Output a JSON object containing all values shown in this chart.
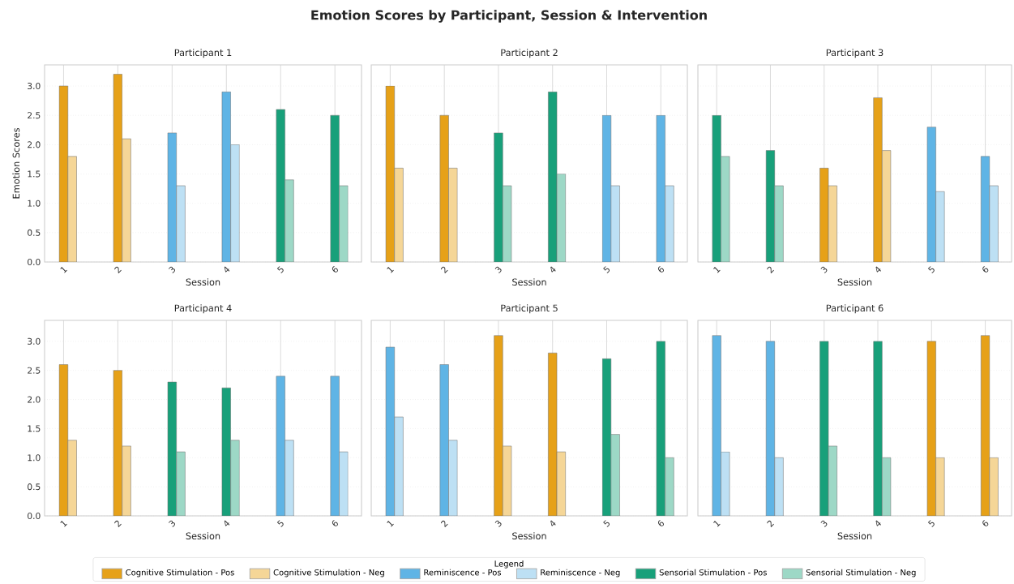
{
  "chart_data": [
    {
      "type": "bar",
      "title": "Participant 1",
      "annotations": [
        "Emotion Scores by Participant, Session & Intervention"
      ],
      "xlabel": "Session",
      "ylabel": "Emotion Scores",
      "legend_title": "Legend",
      "legend": "bottom",
      "grid": true,
      "categories": [
        "1",
        "2",
        "3",
        "4",
        "5",
        "6"
      ],
      "ylim": [
        0,
        3.36
      ],
      "yticks": [
        {
          "value": 0,
          "label": "0.0"
        },
        {
          "value": 0.5,
          "label": "0.5"
        },
        {
          "value": 1,
          "label": "1.0"
        },
        {
          "value": 1.5,
          "label": "1.5"
        },
        {
          "value": 2,
          "label": "2.0"
        },
        {
          "value": 2.5,
          "label": "2.5"
        },
        {
          "value": 3,
          "label": "3.0"
        }
      ],
      "series": [
        {
          "name": "Cognitive Stimulation - Pos",
          "color": "#e6a118",
          "values": [
            3.0,
            3.2,
            null,
            null,
            null,
            null
          ]
        },
        {
          "name": "Cognitive Stimulation - Neg",
          "color": "#f5d697",
          "values": [
            1.8,
            2.1,
            null,
            null,
            null,
            null
          ]
        },
        {
          "name": "Reminiscence - Pos",
          "color": "#5fb4e5",
          "values": [
            null,
            null,
            2.2,
            2.9,
            null,
            null
          ]
        },
        {
          "name": "Reminiscence - Neg",
          "color": "#bde0f4",
          "values": [
            null,
            null,
            1.3,
            2.0,
            null,
            null
          ]
        },
        {
          "name": "Sensorial Stimulation - Pos",
          "color": "#18a07a",
          "values": [
            null,
            null,
            null,
            null,
            2.6,
            2.5
          ]
        },
        {
          "name": "Sensorial Stimulation - Neg",
          "color": "#9dd8c6",
          "values": [
            null,
            null,
            null,
            null,
            1.4,
            1.3
          ]
        }
      ]
    },
    {
      "type": "bar",
      "title": "Participant 2",
      "xlabel": "Session",
      "grid": true,
      "tick_labels": "x",
      "categories": [
        "1",
        "2",
        "3",
        "4",
        "5",
        "6"
      ],
      "ylim": [
        0,
        3.36
      ],
      "yticks": [
        {
          "value": 0,
          "label": null
        },
        {
          "value": 0.5,
          "label": null
        },
        {
          "value": 1,
          "label": null
        },
        {
          "value": 1.5,
          "label": null
        },
        {
          "value": 2,
          "label": null
        },
        {
          "value": 2.5,
          "label": null
        },
        {
          "value": 3,
          "label": null
        }
      ],
      "series": [
        {
          "color": "#e6a118",
          "values": [
            3.0,
            2.5,
            null,
            null,
            null,
            null
          ]
        },
        {
          "color": "#f5d697",
          "values": [
            1.6,
            1.6,
            null,
            null,
            null,
            null
          ]
        },
        {
          "color": "#5fb4e5",
          "values": [
            null,
            null,
            null,
            null,
            2.5,
            2.5
          ]
        },
        {
          "color": "#bde0f4",
          "values": [
            null,
            null,
            null,
            null,
            1.3,
            1.3
          ]
        },
        {
          "color": "#18a07a",
          "values": [
            null,
            null,
            2.2,
            2.9,
            null,
            null
          ]
        },
        {
          "color": "#9dd8c6",
          "values": [
            null,
            null,
            1.3,
            1.5,
            null,
            null
          ]
        }
      ]
    },
    {
      "type": "bar",
      "title": "Participant 3",
      "xlabel": "Session",
      "grid": true,
      "tick_labels": "x",
      "categories": [
        "1",
        "2",
        "3",
        "4",
        "5",
        "6"
      ],
      "ylim": [
        0,
        3.36
      ],
      "yticks": [
        {
          "value": 0,
          "label": null
        },
        {
          "value": 0.5,
          "label": null
        },
        {
          "value": 1,
          "label": null
        },
        {
          "value": 1.5,
          "label": null
        },
        {
          "value": 2,
          "label": null
        },
        {
          "value": 2.5,
          "label": null
        },
        {
          "value": 3,
          "label": null
        }
      ],
      "series": [
        {
          "color": "#e6a118",
          "values": [
            null,
            null,
            1.6,
            2.8,
            null,
            null
          ]
        },
        {
          "color": "#f5d697",
          "values": [
            null,
            null,
            1.3,
            1.9,
            null,
            null
          ]
        },
        {
          "color": "#5fb4e5",
          "values": [
            null,
            null,
            null,
            null,
            2.3,
            1.8
          ]
        },
        {
          "color": "#bde0f4",
          "values": [
            null,
            null,
            null,
            null,
            1.2,
            1.3
          ]
        },
        {
          "color": "#18a07a",
          "values": [
            2.5,
            1.9,
            null,
            null,
            null,
            null
          ]
        },
        {
          "color": "#9dd8c6",
          "values": [
            1.8,
            1.3,
            null,
            null,
            null,
            null
          ]
        }
      ]
    },
    {
      "type": "bar",
      "title": "Participant 4",
      "xlabel": "Session",
      "grid": true,
      "categories": [
        "1",
        "2",
        "3",
        "4",
        "5",
        "6"
      ],
      "ylim": [
        0,
        3.36
      ],
      "yticks": [
        {
          "value": 0,
          "label": "0.0"
        },
        {
          "value": 0.5,
          "label": "0.5"
        },
        {
          "value": 1,
          "label": "1.0"
        },
        {
          "value": 1.5,
          "label": "1.5"
        },
        {
          "value": 2,
          "label": "2.0"
        },
        {
          "value": 2.5,
          "label": "2.5"
        },
        {
          "value": 3,
          "label": "3.0"
        }
      ],
      "series": [
        {
          "color": "#e6a118",
          "values": [
            2.6,
            2.5,
            null,
            null,
            null,
            null
          ]
        },
        {
          "color": "#f5d697",
          "values": [
            1.3,
            1.2,
            null,
            null,
            null,
            null
          ]
        },
        {
          "color": "#5fb4e5",
          "values": [
            null,
            null,
            null,
            null,
            2.4,
            2.4
          ]
        },
        {
          "color": "#bde0f4",
          "values": [
            null,
            null,
            null,
            null,
            1.3,
            1.1
          ]
        },
        {
          "color": "#18a07a",
          "values": [
            null,
            null,
            2.3,
            2.2,
            null,
            null
          ]
        },
        {
          "color": "#9dd8c6",
          "values": [
            null,
            null,
            1.1,
            1.3,
            null,
            null
          ]
        }
      ]
    },
    {
      "type": "bar",
      "title": "Participant 5",
      "xlabel": "Session",
      "grid": true,
      "tick_labels": "x",
      "categories": [
        "1",
        "2",
        "3",
        "4",
        "5",
        "6"
      ],
      "ylim": [
        0,
        3.36
      ],
      "yticks": [
        {
          "value": 0,
          "label": null
        },
        {
          "value": 0.5,
          "label": null
        },
        {
          "value": 1,
          "label": null
        },
        {
          "value": 1.5,
          "label": null
        },
        {
          "value": 2,
          "label": null
        },
        {
          "value": 2.5,
          "label": null
        },
        {
          "value": 3,
          "label": null
        }
      ],
      "series": [
        {
          "color": "#e6a118",
          "values": [
            null,
            null,
            3.1,
            2.8,
            null,
            null
          ]
        },
        {
          "color": "#f5d697",
          "values": [
            null,
            null,
            1.2,
            1.1,
            null,
            null
          ]
        },
        {
          "color": "#5fb4e5",
          "values": [
            2.9,
            2.6,
            null,
            null,
            null,
            null
          ]
        },
        {
          "color": "#bde0f4",
          "values": [
            1.7,
            1.3,
            null,
            null,
            null,
            null
          ]
        },
        {
          "color": "#18a07a",
          "values": [
            null,
            null,
            null,
            null,
            2.7,
            3.0
          ]
        },
        {
          "color": "#9dd8c6",
          "values": [
            null,
            null,
            null,
            null,
            1.4,
            1.0
          ]
        }
      ]
    },
    {
      "type": "bar",
      "title": "Participant 6",
      "xlabel": "Session",
      "grid": true,
      "tick_labels": "x",
      "categories": [
        "1",
        "2",
        "3",
        "4",
        "5",
        "6"
      ],
      "ylim": [
        0,
        3.36
      ],
      "yticks": [
        {
          "value": 0,
          "label": null
        },
        {
          "value": 0.5,
          "label": null
        },
        {
          "value": 1,
          "label": null
        },
        {
          "value": 1.5,
          "label": null
        },
        {
          "value": 2,
          "label": null
        },
        {
          "value": 2.5,
          "label": null
        },
        {
          "value": 3,
          "label": null
        }
      ],
      "series": [
        {
          "color": "#e6a118",
          "values": [
            null,
            null,
            null,
            null,
            3.0,
            3.1
          ]
        },
        {
          "color": "#f5d697",
          "values": [
            null,
            null,
            null,
            null,
            1.0,
            1.0
          ]
        },
        {
          "color": "#5fb4e5",
          "values": [
            3.1,
            3.0,
            null,
            null,
            null,
            null
          ]
        },
        {
          "color": "#bde0f4",
          "values": [
            1.1,
            1.0,
            null,
            null,
            null,
            null
          ]
        },
        {
          "color": "#18a07a",
          "values": [
            null,
            null,
            3.0,
            3.0,
            null,
            null
          ]
        },
        {
          "color": "#9dd8c6",
          "values": [
            null,
            null,
            1.2,
            1.0,
            null,
            null
          ]
        }
      ]
    }
  ]
}
